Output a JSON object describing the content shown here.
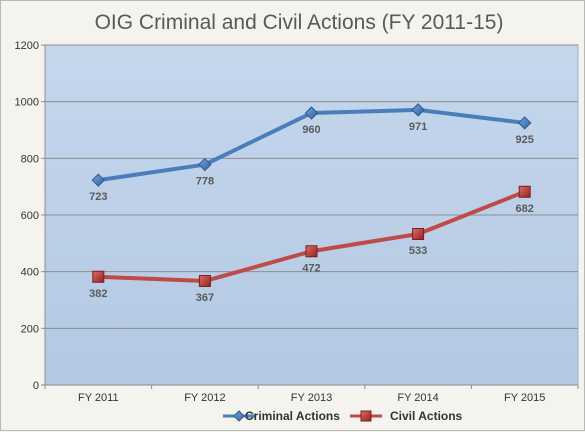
{
  "chart_data": {
    "type": "line",
    "title": "OIG Criminal and Civil Actions (FY 2011-15)",
    "categories": [
      "FY 2011",
      "FY 2012",
      "FY 2013",
      "FY 2014",
      "FY 2015"
    ],
    "yticks": [
      0,
      200,
      400,
      600,
      800,
      1000,
      1200
    ],
    "ylim": [
      0,
      1200
    ],
    "grid": true,
    "legend_position": "bottom",
    "series": [
      {
        "name": "Criminal Actions",
        "values": [
          723,
          778,
          960,
          971,
          925
        ],
        "color": "#4a7ebb",
        "marker": "diamond"
      },
      {
        "name": "Civil Actions",
        "values": [
          382,
          367,
          472,
          533,
          682
        ],
        "color": "#be4b48",
        "marker": "square"
      }
    ],
    "plot_background": "#b9cde5"
  }
}
